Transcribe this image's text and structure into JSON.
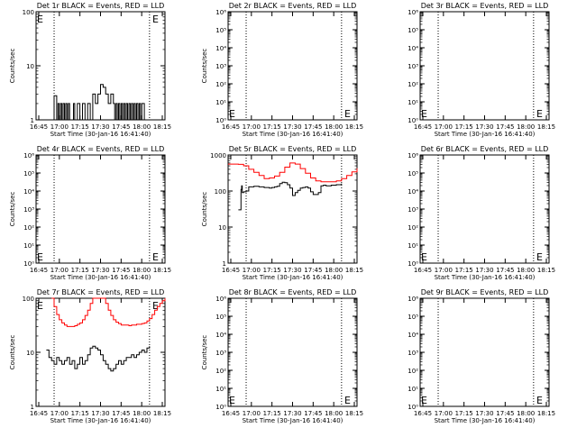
{
  "chart_data": [
    {
      "type": "line",
      "title": "Det 1r BLACK = Events, RED = LLD",
      "xlabel": "Start Time (30-Jan-16 16:41:40)",
      "ylabel": "Counts/sec",
      "scale": "log",
      "ylim": [
        1,
        100
      ],
      "yticks": [
        "1",
        "10",
        "100"
      ],
      "xticks": [
        "16:45",
        "17:00",
        "17:15",
        "17:30",
        "17:45",
        "18:00",
        "18:15"
      ],
      "xlim": [
        0,
        100
      ],
      "vlines": [
        14,
        88
      ],
      "emarks": [
        [
          "left",
          "top"
        ],
        [
          "right",
          "top"
        ]
      ],
      "series": [
        {
          "name": "BLACK",
          "color": "#000000",
          "x": [
            0,
            4,
            5,
            6,
            7,
            8,
            9,
            10,
            11,
            12,
            14,
            15,
            16,
            17,
            18,
            19,
            20,
            21,
            22,
            23,
            24,
            25,
            26,
            27,
            28,
            29,
            30,
            32,
            34,
            36,
            38,
            40,
            42,
            44,
            46,
            48,
            50,
            52,
            54,
            56,
            58,
            60,
            61,
            62,
            63,
            64,
            65,
            66,
            67,
            68,
            69,
            70,
            71,
            72,
            73,
            74,
            75,
            76,
            77,
            78,
            79,
            80,
            81,
            82,
            84,
            86,
            88,
            90,
            92,
            94,
            96,
            98,
            100
          ],
          "y": [
            1,
            1,
            1,
            1,
            1,
            1,
            1,
            1,
            1,
            1,
            2.8,
            2.8,
            1,
            2,
            1,
            2,
            1,
            2,
            1,
            2,
            1,
            2,
            1,
            1,
            1,
            2,
            1,
            2,
            1,
            2,
            1,
            2,
            1,
            3,
            2,
            3,
            4.5,
            4,
            3,
            2,
            3,
            2,
            1,
            2,
            1,
            2,
            1,
            2,
            1,
            2,
            1,
            2,
            1,
            2,
            1,
            2,
            1,
            2,
            1,
            2,
            1,
            2,
            1,
            2,
            1,
            1,
            1,
            1,
            1,
            1,
            1,
            1,
            1
          ]
        },
        {
          "name": "RED",
          "color": "#ff0000",
          "x": [],
          "y": []
        }
      ]
    },
    {
      "type": "line",
      "title": "Det 2r BLACK = Events, RED = LLD",
      "xlabel": "Start Time (30-Jan-16 16:41:40)",
      "ylabel": "Counts/sec",
      "scale": "log",
      "ylim": [
        1,
        1000000
      ],
      "yticks": [
        "10⁰",
        "10¹",
        "10²",
        "10³",
        "10⁴",
        "10⁵",
        "10⁶"
      ],
      "xticks": [
        "16:45",
        "17:00",
        "17:15",
        "17:30",
        "17:45",
        "18:00",
        "18:15"
      ],
      "xlim": [
        0,
        100
      ],
      "vlines": [
        14,
        88
      ],
      "emarks": [
        [
          "left",
          "bottom"
        ],
        [
          "right",
          "bottom"
        ]
      ],
      "series": []
    },
    {
      "type": "line",
      "title": "Det 3r BLACK = Events, RED = LLD",
      "xlabel": "Start Time (30-Jan-16 16:41:40)",
      "ylabel": "",
      "scale": "log",
      "ylim": [
        1,
        1000000
      ],
      "yticks": [
        "10⁰",
        "10¹",
        "10²",
        "10³",
        "10⁴",
        "10⁵",
        "10⁶"
      ],
      "xticks": [
        "16:45",
        "17:00",
        "17:15",
        "17:30",
        "17:45",
        "18:00",
        "18:15"
      ],
      "xlim": [
        0,
        100
      ],
      "vlines": [
        14,
        88
      ],
      "emarks": [
        [
          "left",
          "bottom"
        ],
        [
          "right",
          "bottom"
        ]
      ],
      "series": []
    },
    {
      "type": "line",
      "title": "Det 4r BLACK = Events, RED = LLD",
      "xlabel": "Start Time (30-Jan-16 16:41:40)",
      "ylabel": "Counts/sec",
      "scale": "log",
      "ylim": [
        1,
        1000000
      ],
      "yticks": [
        "10⁰",
        "10¹",
        "10²",
        "10³",
        "10⁴",
        "10⁵",
        "10⁶"
      ],
      "xticks": [
        "16:45",
        "17:00",
        "17:15",
        "17:30",
        "17:45",
        "18:00",
        "18:15"
      ],
      "xlim": [
        0,
        100
      ],
      "vlines": [
        14,
        88
      ],
      "emarks": [
        [
          "left",
          "bottom"
        ],
        [
          "right",
          "bottom"
        ]
      ],
      "series": []
    },
    {
      "type": "line",
      "title": "Det 5r BLACK = Events, RED = LLD",
      "xlabel": "Start Time (30-Jan-16 16:41:40)",
      "ylabel": "Counts/sec",
      "scale": "log",
      "ylim": [
        1,
        1000
      ],
      "yticks": [
        "1",
        "10",
        "100",
        "1000"
      ],
      "xticks": [
        "16:45",
        "17:00",
        "17:15",
        "17:30",
        "17:45",
        "18:00",
        "18:15"
      ],
      "xlim": [
        0,
        100
      ],
      "vlines": [
        14,
        88
      ],
      "emarks": [],
      "series": [
        {
          "name": "BLACK",
          "color": "#000000",
          "x": [
            8,
            10,
            10.5,
            11,
            12,
            14,
            16,
            20,
            24,
            28,
            30,
            32,
            34,
            36,
            38,
            40,
            42,
            44,
            46,
            48,
            50,
            52,
            54,
            56,
            58,
            60,
            62,
            64,
            66,
            68,
            70,
            72,
            74,
            76,
            78,
            80,
            82,
            84,
            86,
            88
          ],
          "y": [
            30,
            110,
            140,
            90,
            95,
            100,
            130,
            135,
            130,
            125,
            125,
            120,
            125,
            130,
            135,
            160,
            175,
            170,
            150,
            120,
            75,
            90,
            105,
            120,
            125,
            130,
            120,
            95,
            80,
            80,
            90,
            140,
            145,
            140,
            140,
            145,
            145,
            150,
            150,
            160
          ]
        },
        {
          "name": "RED",
          "color": "#ff0000",
          "x": [
            0,
            4,
            8,
            12,
            16,
            20,
            24,
            28,
            32,
            36,
            40,
            44,
            48,
            52,
            56,
            60,
            64,
            68,
            72,
            76,
            80,
            84,
            88,
            92,
            96,
            100
          ],
          "y": [
            560,
            560,
            550,
            500,
            400,
            330,
            270,
            220,
            230,
            260,
            330,
            460,
            600,
            560,
            420,
            310,
            230,
            190,
            180,
            180,
            180,
            190,
            220,
            270,
            340,
            430
          ]
        }
      ]
    },
    {
      "type": "line",
      "title": "Det 6r BLACK = Events, RED = LLD",
      "xlabel": "Start Time (30-Jan-16 16:41:40)",
      "ylabel": "",
      "scale": "log",
      "ylim": [
        1,
        1000000
      ],
      "yticks": [
        "10⁰",
        "10¹",
        "10²",
        "10³",
        "10⁴",
        "10⁵",
        "10⁶"
      ],
      "xticks": [
        "16:45",
        "17:00",
        "17:15",
        "17:30",
        "17:45",
        "18:00",
        "18:15"
      ],
      "xlim": [
        0,
        100
      ],
      "vlines": [
        14,
        88
      ],
      "emarks": [
        [
          "left",
          "bottom"
        ],
        [
          "right",
          "bottom"
        ]
      ],
      "series": []
    },
    {
      "type": "line",
      "title": "Det 7r BLACK = Events, RED = LLD",
      "xlabel": "Start Time (30-Jan-16 16:41:40)",
      "ylabel": "Counts/sec",
      "scale": "log",
      "ylim": [
        1,
        100
      ],
      "yticks": [
        "1",
        "10",
        "100"
      ],
      "xticks": [
        "16:45",
        "17:00",
        "17:15",
        "17:30",
        "17:45",
        "18:00",
        "18:15"
      ],
      "xlim": [
        0,
        100
      ],
      "vlines": [
        14,
        88
      ],
      "emarks": [
        [
          "left",
          "top"
        ],
        [
          "right",
          "top"
        ]
      ],
      "series": [
        {
          "name": "BLACK",
          "color": "#000000",
          "x": [
            8,
            10,
            12,
            14,
            16,
            18,
            20,
            22,
            24,
            26,
            28,
            30,
            32,
            34,
            36,
            38,
            40,
            42,
            44,
            46,
            48,
            50,
            52,
            54,
            56,
            58,
            60,
            62,
            64,
            66,
            68,
            70,
            72,
            74,
            76,
            78,
            80,
            82,
            84,
            86,
            88
          ],
          "y": [
            11,
            8,
            7,
            6,
            8,
            7,
            6,
            7,
            8,
            6,
            7,
            5,
            6,
            8,
            6,
            7,
            9,
            12,
            13,
            12,
            11,
            9,
            7,
            6,
            5,
            4.5,
            5,
            6,
            7,
            6,
            7,
            8,
            8,
            9,
            8,
            9,
            10,
            11,
            10,
            12,
            13
          ]
        },
        {
          "name": "RED",
          "color": "#ff0000",
          "x": [
            12,
            14,
            16,
            18,
            20,
            22,
            24,
            26,
            28,
            30,
            32,
            34,
            36,
            38,
            40,
            42,
            44,
            46,
            48,
            50,
            52,
            54,
            56,
            58,
            60,
            62,
            64,
            66,
            68,
            70,
            72,
            74,
            76,
            78,
            80,
            82,
            84,
            86,
            88,
            90,
            92,
            94,
            96,
            98,
            100
          ],
          "y": [
            100,
            70,
            50,
            40,
            35,
            32,
            30,
            30,
            30,
            31,
            33,
            35,
            40,
            48,
            60,
            80,
            100,
            100,
            100,
            100,
            100,
            80,
            60,
            48,
            40,
            36,
            34,
            32,
            32,
            32,
            31,
            32,
            32,
            33,
            33,
            34,
            35,
            38,
            42,
            50,
            60,
            70,
            80,
            90,
            100
          ]
        }
      ]
    },
    {
      "type": "line",
      "title": "Det 8r BLACK = Events, RED = LLD",
      "xlabel": "Start Time (30-Jan-16 16:41:40)",
      "ylabel": "Counts/sec",
      "scale": "log",
      "ylim": [
        1,
        1000000
      ],
      "yticks": [
        "10⁰",
        "10¹",
        "10²",
        "10³",
        "10⁴",
        "10⁵",
        "10⁶"
      ],
      "xticks": [
        "16:45",
        "17:00",
        "17:15",
        "17:30",
        "17:45",
        "18:00",
        "18:15"
      ],
      "xlim": [
        0,
        100
      ],
      "vlines": [
        14,
        88
      ],
      "emarks": [
        [
          "left",
          "bottom"
        ],
        [
          "right",
          "bottom"
        ]
      ],
      "series": []
    },
    {
      "type": "line",
      "title": "Det 9r BLACK = Events, RED = LLD",
      "xlabel": "Start Time (30-Jan-16 16:41:40)",
      "ylabel": "",
      "scale": "log",
      "ylim": [
        1,
        1000000
      ],
      "yticks": [
        "10⁰",
        "10¹",
        "10²",
        "10³",
        "10⁴",
        "10⁵",
        "10⁶"
      ],
      "xticks": [
        "16:45",
        "17:00",
        "17:15",
        "17:30",
        "17:45",
        "18:00",
        "18:15"
      ],
      "xlim": [
        0,
        100
      ],
      "vlines": [
        14,
        88
      ],
      "emarks": [
        [
          "left",
          "bottom"
        ],
        [
          "right",
          "bottom"
        ]
      ],
      "series": []
    }
  ]
}
